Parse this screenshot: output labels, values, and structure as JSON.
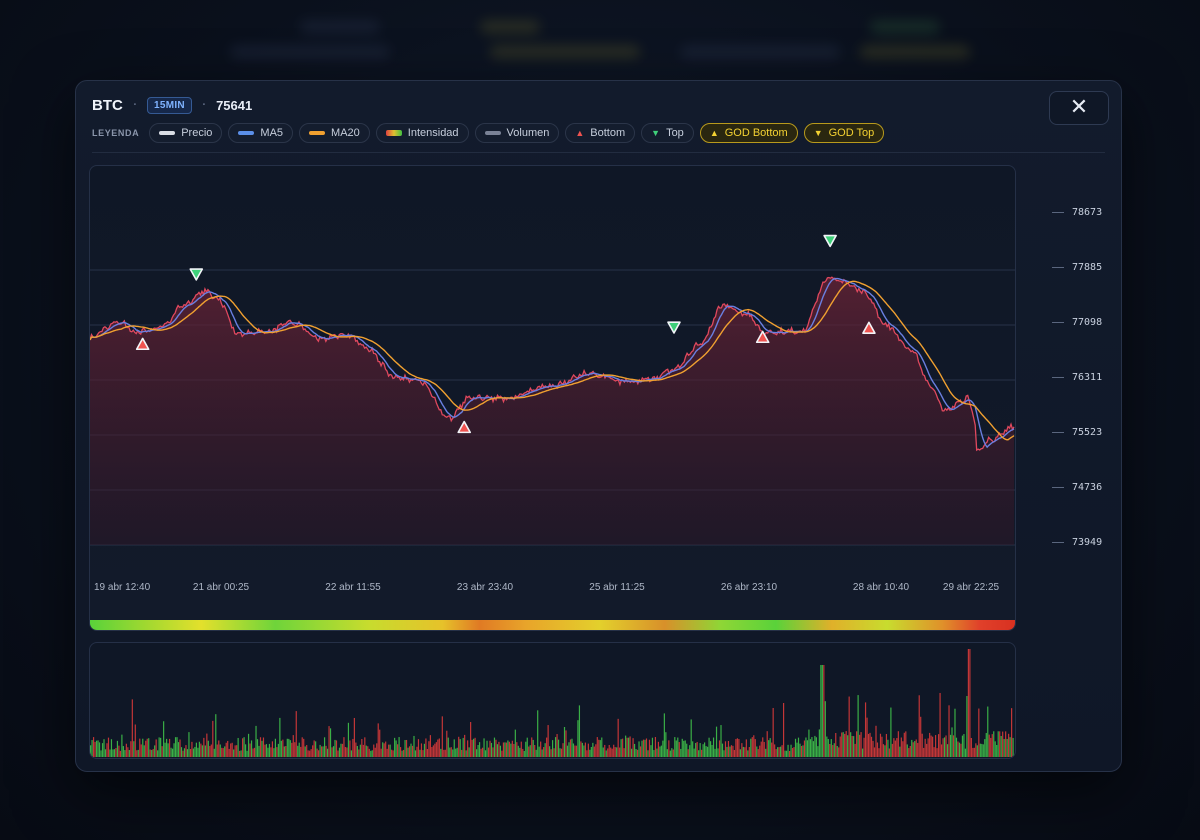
{
  "header": {
    "symbol": "BTC",
    "separator": "·",
    "timeframe": "15MIN",
    "price": "75641"
  },
  "close_button": {
    "icon": "close-icon",
    "glyph": "✕"
  },
  "legend": {
    "label": "LEYENDA",
    "items": [
      {
        "label": "Precio",
        "icon": "line-swatch-icon",
        "color": "#d9dde5"
      },
      {
        "label": "MA5",
        "icon": "line-swatch-icon",
        "color": "#5b8fe8"
      },
      {
        "label": "MA20",
        "icon": "line-swatch-icon",
        "color": "#f0a030"
      },
      {
        "label": "Intensidad",
        "icon": "gradient-swatch-icon",
        "color": "#e04040"
      },
      {
        "label": "Volumen",
        "icon": "line-swatch-icon",
        "color": "#7a8296"
      },
      {
        "label": "Bottom",
        "icon": "triangle-up-icon",
        "color": "#ef5350"
      },
      {
        "label": "Top",
        "icon": "triangle-down-icon",
        "color": "#3fd07a"
      },
      {
        "label": "GOD Bottom",
        "icon": "triangle-up-icon",
        "color": "#f4d232",
        "gold": true
      },
      {
        "label": "GOD Top",
        "icon": "triangle-down-icon",
        "color": "#f4d232",
        "gold": true
      }
    ]
  },
  "colors": {
    "price_line": "#e0485e",
    "ma5": "#6a7fe0",
    "ma20": "#f0a030",
    "area_fill": "#5a1e2e",
    "bottom_marker": "#ef5350",
    "top_marker": "#3fd07a",
    "volume_up": "#3fc04a",
    "volume_down": "#d83a3a"
  },
  "chart_data": {
    "type": "line",
    "y_ticks": [
      78673,
      77885,
      77098,
      76311,
      75523,
      74736,
      73949
    ],
    "ylim": [
      73780,
      79300
    ],
    "x_ticks": [
      "19 abr 12:40",
      "21 abr 00:25",
      "22 abr 11:55",
      "23 abr 23:40",
      "25 abr 11:25",
      "26 abr 23:10",
      "28 abr 10:40",
      "29 abr 22:25"
    ],
    "price_keypoints": [
      [
        0,
        76920
      ],
      [
        0.03,
        77150
      ],
      [
        0.05,
        77000
      ],
      [
        0.08,
        77080
      ],
      [
        0.1,
        77380
      ],
      [
        0.125,
        77580
      ],
      [
        0.14,
        77450
      ],
      [
        0.16,
        76980
      ],
      [
        0.19,
        77000
      ],
      [
        0.22,
        77130
      ],
      [
        0.25,
        76900
      ],
      [
        0.28,
        76960
      ],
      [
        0.3,
        76760
      ],
      [
        0.33,
        76350
      ],
      [
        0.355,
        76300
      ],
      [
        0.39,
        75770
      ],
      [
        0.41,
        76050
      ],
      [
        0.45,
        76050
      ],
      [
        0.5,
        76230
      ],
      [
        0.54,
        76410
      ],
      [
        0.58,
        76280
      ],
      [
        0.61,
        76330
      ],
      [
        0.63,
        76450
      ],
      [
        0.66,
        76820
      ],
      [
        0.685,
        77380
      ],
      [
        0.71,
        77250
      ],
      [
        0.73,
        77000
      ],
      [
        0.77,
        77010
      ],
      [
        0.8,
        77780
      ],
      [
        0.82,
        77700
      ],
      [
        0.84,
        77550
      ],
      [
        0.86,
        77120
      ],
      [
        0.89,
        76730
      ],
      [
        0.91,
        76230
      ],
      [
        0.925,
        75870
      ],
      [
        0.95,
        76050
      ],
      [
        0.957,
        75810
      ],
      [
        0.96,
        75300
      ],
      [
        0.975,
        75450
      ],
      [
        1.0,
        75640
      ]
    ],
    "series": [
      {
        "name": "Precio"
      },
      {
        "name": "MA5"
      },
      {
        "name": "MA20"
      }
    ],
    "bottom_markers": [
      [
        0.057,
        76820
      ],
      [
        0.405,
        75630
      ],
      [
        0.728,
        76920
      ],
      [
        0.843,
        77050
      ]
    ],
    "top_markers": [
      [
        0.115,
        77830
      ],
      [
        0.632,
        77070
      ],
      [
        0.801,
        78310
      ]
    ],
    "volume": {
      "type": "bar",
      "bars": 620
    },
    "intensity_strip": {
      "stops": [
        [
          0,
          "#59d23a"
        ],
        [
          0.06,
          "#a0d830"
        ],
        [
          0.12,
          "#e3e02c"
        ],
        [
          0.2,
          "#6fd43a"
        ],
        [
          0.3,
          "#c7dc2e"
        ],
        [
          0.38,
          "#e6c22a"
        ],
        [
          0.42,
          "#e07a24"
        ],
        [
          0.47,
          "#e8a42a"
        ],
        [
          0.55,
          "#e3d02c"
        ],
        [
          0.62,
          "#d8902a"
        ],
        [
          0.68,
          "#8fd636"
        ],
        [
          0.74,
          "#5ad23a"
        ],
        [
          0.8,
          "#e0b02a"
        ],
        [
          0.86,
          "#c8dc2e"
        ],
        [
          0.92,
          "#e0902a"
        ],
        [
          0.96,
          "#e0402a"
        ],
        [
          1.0,
          "#d83020"
        ]
      ]
    }
  }
}
